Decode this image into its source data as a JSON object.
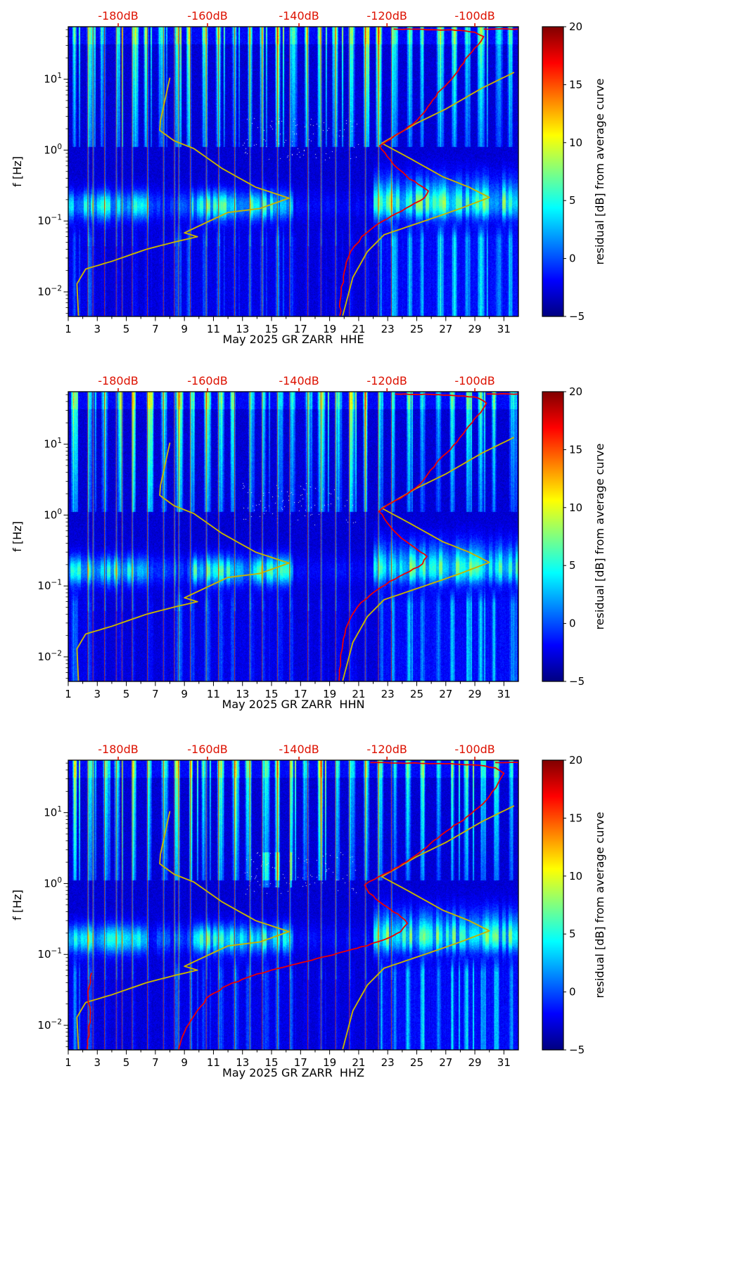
{
  "page": {
    "background": "#ffffff"
  },
  "figure_common": {
    "ylabel": "f [Hz]",
    "colorbar_label": "residual [dB] from average curve",
    "colorbar_ticks": [
      20,
      15,
      10,
      5,
      0,
      -5
    ],
    "colorbar_range": [
      -5,
      20
    ],
    "colormap": "jet",
    "x_ticks": [
      1,
      3,
      5,
      7,
      9,
      11,
      13,
      15,
      17,
      19,
      21,
      23,
      25,
      27,
      29,
      31
    ],
    "x_range_day": [
      1,
      32
    ],
    "y_scale": "log",
    "y_range_hz": [
      0.0045,
      55
    ],
    "y_tick_exponents": [
      1,
      0,
      -1,
      -2
    ],
    "top_axis": {
      "labels": [
        "-180dB",
        "-160dB",
        "-140dB",
        "-120dB",
        "-100dB"
      ],
      "positions_day": [
        4.44,
        10.59,
        16.89,
        22.95,
        29.0
      ],
      "color": "#dd1100"
    },
    "event_line_days": [
      2.35,
      2.7,
      3.5,
      4.3,
      4.7,
      5.4,
      6.45,
      7.55,
      8.3,
      8.6,
      9.4,
      10.5,
      11.35,
      12.45,
      13.5,
      14.35,
      15.4,
      16.25,
      17.5,
      18.4,
      19.4,
      20.35,
      21.45,
      22.35,
      23.25
    ],
    "noise_models": {
      "color": "#c8b400",
      "low_points_day_hz": [
        [
          8.0,
          10.5
        ],
        [
          7.35,
          2.6
        ],
        [
          7.3,
          1.9
        ],
        [
          8.3,
          1.35
        ],
        [
          9.65,
          1.05
        ],
        [
          11.6,
          0.55
        ],
        [
          13.9,
          0.3
        ],
        [
          16.2,
          0.21
        ],
        [
          14.2,
          0.15
        ],
        [
          12.0,
          0.132
        ],
        [
          10.0,
          0.085
        ],
        [
          9.0,
          0.068
        ],
        [
          9.9,
          0.06
        ],
        [
          8.4,
          0.051
        ],
        [
          6.4,
          0.04
        ],
        [
          4.0,
          0.027
        ],
        [
          2.2,
          0.021
        ],
        [
          1.6,
          0.013
        ],
        [
          1.7,
          0.0046
        ]
      ],
      "high_points_day_hz": [
        [
          31.7,
          12.5
        ],
        [
          29.5,
          7.5
        ],
        [
          27.0,
          3.8
        ],
        [
          25.0,
          2.4
        ],
        [
          22.6,
          1.25
        ],
        [
          24.6,
          0.75
        ],
        [
          26.8,
          0.42
        ],
        [
          28.6,
          0.3
        ],
        [
          30.0,
          0.215
        ],
        [
          28.0,
          0.15
        ],
        [
          26.4,
          0.115
        ],
        [
          24.3,
          0.082
        ],
        [
          22.75,
          0.064
        ],
        [
          21.6,
          0.037
        ],
        [
          20.6,
          0.016
        ],
        [
          19.9,
          0.0046
        ]
      ]
    }
  },
  "chart_data": [
    {
      "type": "heatmap",
      "title": "May 2025 GR ZARR  HHE",
      "xlabel": "May 2025 GR ZARR  HHE",
      "ylabel": "f [Hz]",
      "station": "GR ZARR",
      "channel": "HHE",
      "month": "May 2025",
      "colorbar_label": "residual [dB] from average curve",
      "value_range_db": [
        -5,
        20
      ],
      "value_description": "spectrogram residual in dB from average curve; dark blue background near -4 dB, daily vertical stripes of cyan/green energy above 1 Hz, microseism band near 0.1-0.3 Hz bright on days 1-6 and 10-17 and 22-31, low-frequency bright columns below 0.1 Hz strongest on days 23-31",
      "psd_curve": {
        "color": "#ee0000",
        "segments_day_hz": [
          [
            [
              23.4,
              51
            ],
            [
              26.0,
              50
            ],
            [
              28.0,
              49
            ],
            [
              29.0,
              46
            ],
            [
              29.6,
              40
            ],
            [
              29.2,
              30
            ],
            [
              28.6,
              22
            ],
            [
              28.0,
              15
            ],
            [
              27.4,
              10
            ],
            [
              26.7,
              7.2
            ],
            [
              26.1,
              5.1
            ],
            [
              25.6,
              3.6
            ],
            [
              25.0,
              2.6
            ],
            [
              24.2,
              1.95
            ],
            [
              23.4,
              1.55
            ],
            [
              22.9,
              1.32
            ],
            [
              22.45,
              1.15
            ],
            [
              22.8,
              0.92
            ],
            [
              23.2,
              0.72
            ],
            [
              23.7,
              0.55
            ],
            [
              24.3,
              0.43
            ],
            [
              25.1,
              0.33
            ],
            [
              25.8,
              0.265
            ],
            [
              25.5,
              0.21
            ],
            [
              24.6,
              0.165
            ],
            [
              23.6,
              0.128
            ],
            [
              22.6,
              0.098
            ],
            [
              21.8,
              0.075
            ],
            [
              21.2,
              0.06
            ],
            [
              20.7,
              0.044
            ],
            [
              20.3,
              0.031
            ],
            [
              20.0,
              0.019
            ],
            [
              19.8,
              0.01
            ],
            [
              19.7,
              0.0046
            ]
          ],
          [
            [
              29.6,
              51
            ],
            [
              32,
              51
            ]
          ]
        ]
      }
    },
    {
      "type": "heatmap",
      "title": "May 2025 GR ZARR  HHN",
      "xlabel": "May 2025 GR ZARR  HHN",
      "ylabel": "f [Hz]",
      "station": "GR ZARR",
      "channel": "HHN",
      "month": "May 2025",
      "colorbar_label": "residual [dB] from average curve",
      "value_range_db": [
        -5,
        20
      ],
      "value_description": "same pattern as HHE: daily high-frequency stripes, bright microseism band 0.1-0.3 Hz days 1-6 and 10-17 and 22-31, strong low-frequency columns days 23-31",
      "psd_curve": {
        "color": "#ee0000",
        "segments_day_hz": [
          [
            [
              23.5,
              51
            ],
            [
              26.2,
              50
            ],
            [
              28.2,
              48
            ],
            [
              29.2,
              45
            ],
            [
              29.8,
              38
            ],
            [
              29.4,
              28
            ],
            [
              28.8,
              20
            ],
            [
              28.2,
              14
            ],
            [
              27.5,
              9.5
            ],
            [
              26.8,
              6.8
            ],
            [
              26.2,
              4.8
            ],
            [
              25.6,
              3.4
            ],
            [
              24.9,
              2.4
            ],
            [
              24.1,
              1.85
            ],
            [
              23.3,
              1.5
            ],
            [
              22.8,
              1.3
            ],
            [
              22.4,
              1.12
            ],
            [
              22.75,
              0.9
            ],
            [
              23.15,
              0.7
            ],
            [
              23.65,
              0.54
            ],
            [
              24.3,
              0.42
            ],
            [
              25.0,
              0.33
            ],
            [
              25.7,
              0.26
            ],
            [
              25.4,
              0.205
            ],
            [
              24.5,
              0.16
            ],
            [
              23.5,
              0.125
            ],
            [
              22.55,
              0.096
            ],
            [
              21.75,
              0.073
            ],
            [
              21.15,
              0.058
            ],
            [
              20.65,
              0.042
            ],
            [
              20.25,
              0.029
            ],
            [
              19.95,
              0.018
            ],
            [
              19.75,
              0.009
            ],
            [
              19.65,
              0.0046
            ]
          ],
          [
            [
              29.8,
              51
            ],
            [
              32,
              51
            ]
          ]
        ]
      }
    },
    {
      "type": "heatmap",
      "title": "May 2025 GR ZARR  HHZ",
      "xlabel": "May 2025 GR ZARR  HHZ",
      "ylabel": "f [Hz]",
      "station": "GR ZARR",
      "channel": "HHZ",
      "month": "May 2025",
      "colorbar_label": "residual [dB] from average curve",
      "value_range_db": [
        -5,
        20
      ],
      "value_description": "like HHE/HHN plus hot yellow-orange spots near 1-2 Hz around days 14-16; red PSD curve sweeps far left below 0.1 Hz exiting bottom near day 8.6, extra red segment near day 2.4 at lowest frequencies",
      "psd_curve": {
        "color": "#ee0000",
        "segments_day_hz": [
          [
            [
              21.8,
              51
            ],
            [
              24.5,
              50
            ],
            [
              27.0,
              49
            ],
            [
              29.0,
              47
            ],
            [
              30.4,
              43
            ],
            [
              31.0,
              36
            ],
            [
              30.6,
              26
            ],
            [
              30.0,
              17
            ],
            [
              29.3,
              12
            ],
            [
              28.2,
              7.8
            ],
            [
              27.0,
              5.4
            ],
            [
              25.9,
              3.6
            ],
            [
              24.8,
              2.4
            ],
            [
              23.8,
              1.75
            ],
            [
              22.9,
              1.4
            ],
            [
              22.1,
              1.15
            ],
            [
              21.4,
              0.95
            ],
            [
              21.7,
              0.74
            ],
            [
              22.4,
              0.56
            ],
            [
              23.2,
              0.43
            ],
            [
              23.9,
              0.34
            ],
            [
              24.35,
              0.275
            ],
            [
              23.9,
              0.21
            ],
            [
              22.7,
              0.16
            ],
            [
              20.9,
              0.122
            ],
            [
              18.8,
              0.094
            ],
            [
              16.4,
              0.071
            ],
            [
              14.0,
              0.053
            ],
            [
              12.0,
              0.037
            ],
            [
              10.5,
              0.024
            ],
            [
              9.7,
              0.014
            ],
            [
              9.0,
              0.008
            ],
            [
              8.6,
              0.0046
            ]
          ],
          [
            [
              30.4,
              51
            ],
            [
              32,
              51
            ]
          ],
          [
            [
              2.6,
              0.055
            ],
            [
              2.35,
              0.03
            ],
            [
              2.5,
              0.013
            ],
            [
              2.3,
              0.0046
            ]
          ]
        ]
      }
    }
  ]
}
